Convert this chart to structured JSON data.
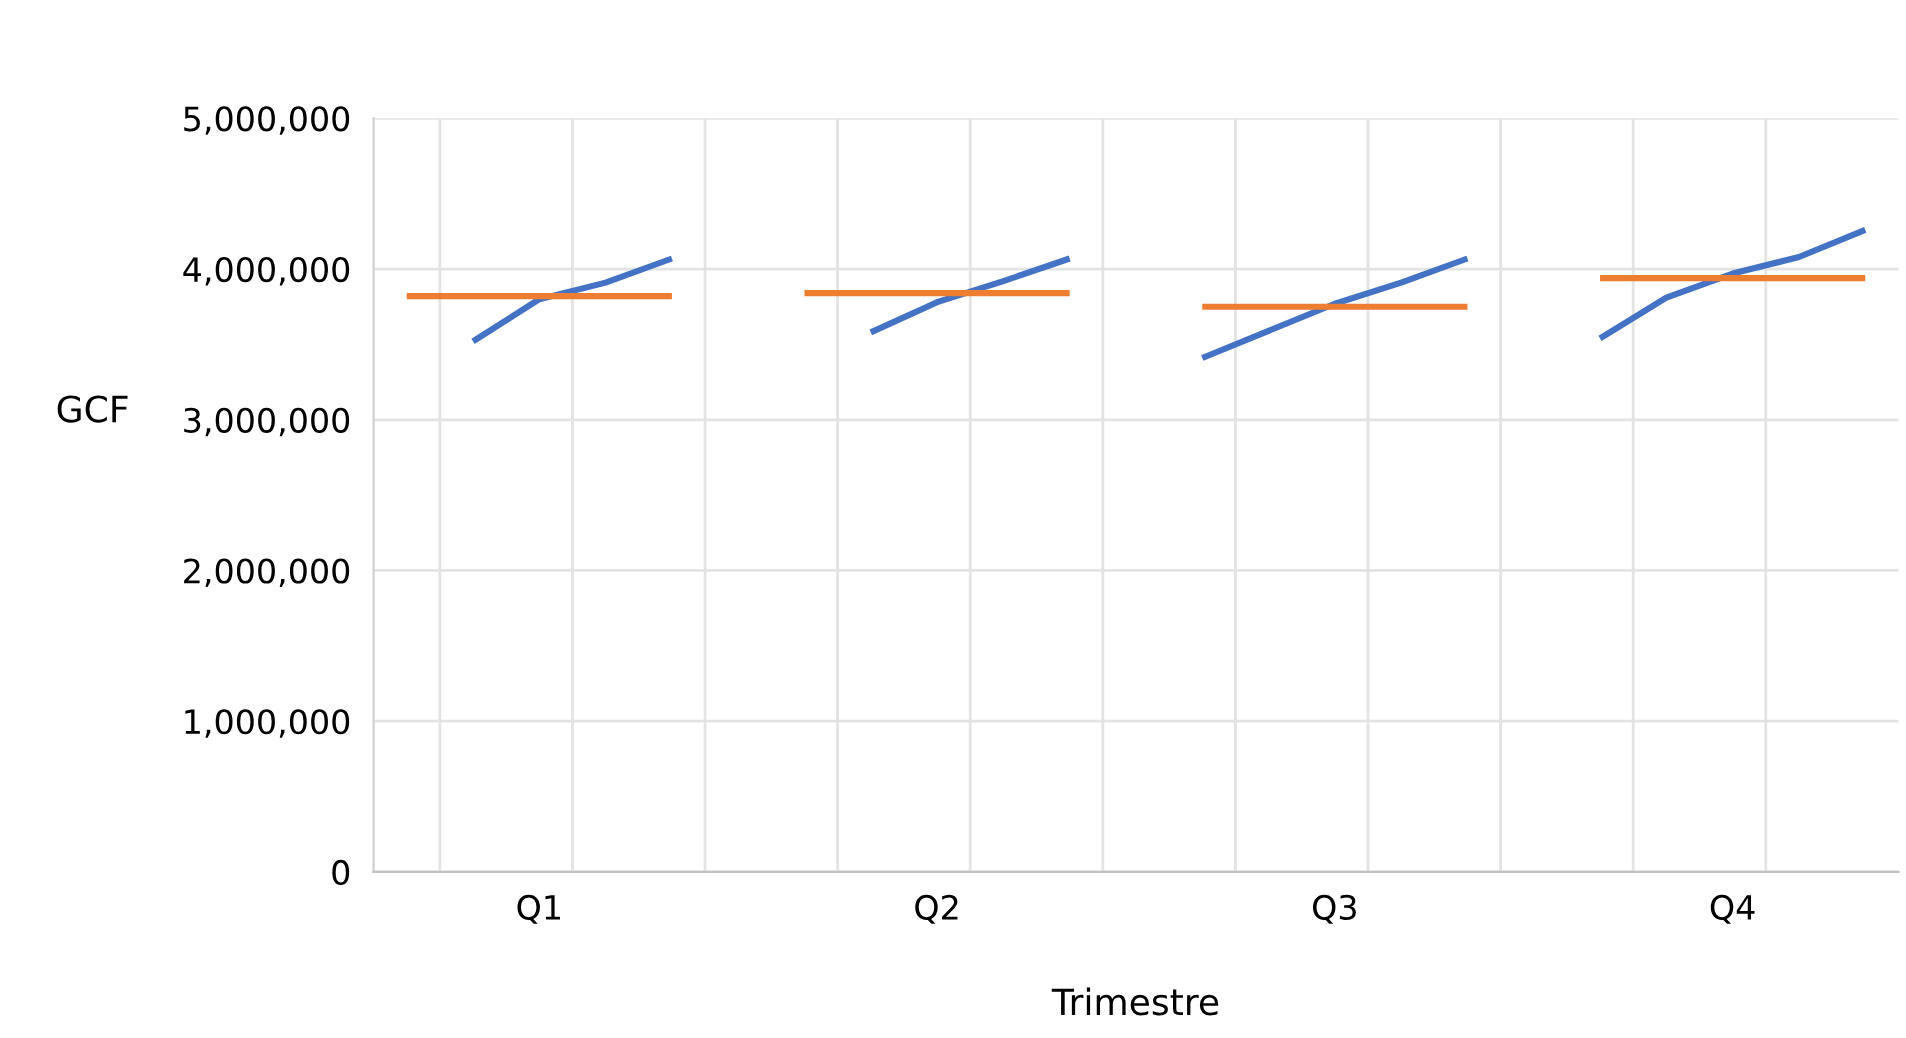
{
  "chart_data": {
    "type": "line",
    "xlabel": "Trimestre",
    "ylabel": "GCF",
    "categories": [
      null,
      null,
      "Q1",
      null,
      null,
      null,
      null,
      null,
      "Q2",
      null,
      null,
      null,
      null,
      null,
      "Q3",
      null,
      null,
      null,
      null,
      null,
      "Q4",
      null,
      null
    ],
    "series": [
      {
        "color": "#4472c4",
        "values": [
          null,
          3520000,
          3800000,
          3910000,
          4070000,
          null,
          null,
          3580000,
          3780000,
          3920000,
          4070000,
          null,
          3410000,
          3590000,
          3770000,
          3910000,
          4070000,
          null,
          3540000,
          3810000,
          3970000,
          4080000,
          4260000
        ]
      },
      {
        "color": "#ed7d31",
        "values": [
          3820000,
          3820000,
          3820000,
          3820000,
          3820000,
          null,
          3840000,
          3840000,
          3840000,
          3840000,
          3840000,
          null,
          3750000,
          3750000,
          3750000,
          3750000,
          3750000,
          null,
          3940000,
          3940000,
          3940000,
          3940000,
          3940000
        ]
      }
    ],
    "ylim": [
      0,
      5000000
    ],
    "yticks": [
      {
        "value": 0,
        "label": "0"
      },
      {
        "value": 1000000,
        "label": "1,000,000"
      },
      {
        "value": 2000000,
        "label": "2,000,000"
      },
      {
        "value": 3000000,
        "label": "3,000,000"
      },
      {
        "value": 4000000,
        "label": "4,000,000"
      },
      {
        "value": 5000000,
        "label": "5,000,000"
      }
    ],
    "grid": true,
    "marker": "none",
    "line_style": "solid"
  }
}
